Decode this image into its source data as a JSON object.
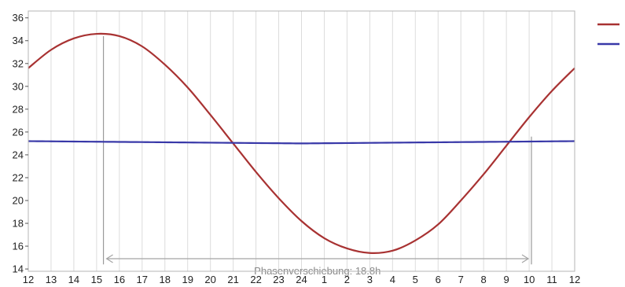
{
  "chart_data": {
    "type": "line",
    "x_ticks": [
      "12",
      "13",
      "14",
      "15",
      "16",
      "17",
      "18",
      "19",
      "20",
      "21",
      "22",
      "23",
      "24",
      "1",
      "2",
      "3",
      "4",
      "5",
      "6",
      "7",
      "8",
      "9",
      "10",
      "11",
      "12"
    ],
    "y_ticks": [
      14,
      16,
      18,
      20,
      22,
      24,
      26,
      28,
      30,
      32,
      34,
      36
    ],
    "ylim": [
      13.8,
      36.6
    ],
    "grid": "vertical",
    "legend": "top-right",
    "series": [
      {
        "color": "#a83232",
        "x": [
          0,
          1,
          2,
          3,
          4,
          5,
          6,
          7,
          8,
          9,
          10,
          11,
          12,
          13,
          14,
          15,
          16,
          17,
          18,
          19,
          20,
          21,
          22,
          23,
          24
        ],
        "values": [
          31.6,
          33.2,
          34.2,
          34.6,
          34.4,
          33.5,
          31.9,
          29.9,
          27.5,
          25.0,
          22.5,
          20.2,
          18.2,
          16.7,
          15.8,
          15.4,
          15.6,
          16.5,
          17.9,
          20.0,
          22.3,
          24.8,
          27.3,
          29.6,
          31.6
        ]
      },
      {
        "color": "#3838a8",
        "x": [
          0,
          6,
          12,
          18,
          24
        ],
        "values": [
          25.2,
          25.1,
          25.0,
          25.1,
          25.2
        ]
      }
    ],
    "annotations": [
      {
        "text": "Phasenverschiebung: 18.8h",
        "x_start": 3.3,
        "x_end": 22.1
      }
    ]
  }
}
